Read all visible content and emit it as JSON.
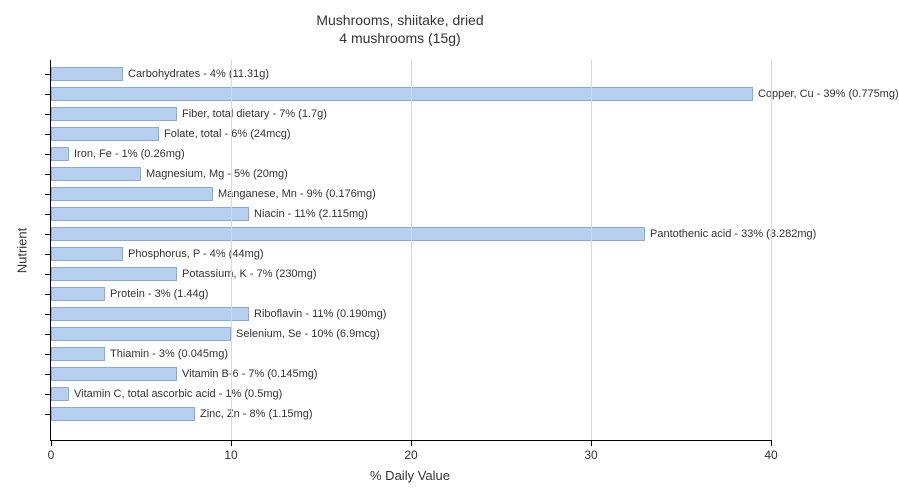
{
  "chart": {
    "type": "bar-horizontal",
    "title_line1": "Mushrooms, shiitake, dried",
    "title_line2": "4 mushrooms (15g)",
    "xlabel": "% Daily Value",
    "ylabel": "Nutrient",
    "xlim": [
      0,
      40
    ],
    "xticks": [
      0,
      10,
      20,
      30,
      40
    ],
    "bar_color": "#b8d0f0",
    "bar_border_color": "#8aa8d8",
    "grid_color": "#d9d9d9",
    "axis_color": "#000000",
    "background_color": "#ffffff",
    "text_color": "#333333",
    "label_fontsize": 11,
    "tick_fontsize": 12,
    "axis_label_fontsize": 13,
    "title_fontsize": 14,
    "nutrients": [
      {
        "name": "Carbohydrates",
        "pct": 4,
        "amount": "11.31g",
        "label": "Carbohydrates - 4% (11.31g)"
      },
      {
        "name": "Copper, Cu",
        "pct": 39,
        "amount": "0.775mg",
        "label": "Copper, Cu - 39% (0.775mg)"
      },
      {
        "name": "Fiber, total dietary",
        "pct": 7,
        "amount": "1.7g",
        "label": "Fiber, total dietary - 7% (1.7g)"
      },
      {
        "name": "Folate, total",
        "pct": 6,
        "amount": "24mcg",
        "label": "Folate, total - 6% (24mcg)"
      },
      {
        "name": "Iron, Fe",
        "pct": 1,
        "amount": "0.26mg",
        "label": "Iron, Fe - 1% (0.26mg)"
      },
      {
        "name": "Magnesium, Mg",
        "pct": 5,
        "amount": "20mg",
        "label": "Magnesium, Mg - 5% (20mg)"
      },
      {
        "name": "Manganese, Mn",
        "pct": 9,
        "amount": "0.176mg",
        "label": "Manganese, Mn - 9% (0.176mg)"
      },
      {
        "name": "Niacin",
        "pct": 11,
        "amount": "2.115mg",
        "label": "Niacin - 11% (2.115mg)"
      },
      {
        "name": "Pantothenic acid",
        "pct": 33,
        "amount": "3.282mg",
        "label": "Pantothenic acid - 33% (3.282mg)"
      },
      {
        "name": "Phosphorus, P",
        "pct": 4,
        "amount": "44mg",
        "label": "Phosphorus, P - 4% (44mg)"
      },
      {
        "name": "Potassium, K",
        "pct": 7,
        "amount": "230mg",
        "label": "Potassium, K - 7% (230mg)"
      },
      {
        "name": "Protein",
        "pct": 3,
        "amount": "1.44g",
        "label": "Protein - 3% (1.44g)"
      },
      {
        "name": "Riboflavin",
        "pct": 11,
        "amount": "0.190mg",
        "label": "Riboflavin - 11% (0.190mg)"
      },
      {
        "name": "Selenium, Se",
        "pct": 10,
        "amount": "6.9mcg",
        "label": "Selenium, Se - 10% (6.9mcg)"
      },
      {
        "name": "Thiamin",
        "pct": 3,
        "amount": "0.045mg",
        "label": "Thiamin - 3% (0.045mg)"
      },
      {
        "name": "Vitamin B-6",
        "pct": 7,
        "amount": "0.145mg",
        "label": "Vitamin B-6 - 7% (0.145mg)"
      },
      {
        "name": "Vitamin C, total ascorbic acid",
        "pct": 1,
        "amount": "0.5mg",
        "label": "Vitamin C, total ascorbic acid - 1% (0.5mg)"
      },
      {
        "name": "Zinc, Zn",
        "pct": 8,
        "amount": "1.15mg",
        "label": "Zinc, Zn - 8% (1.15mg)"
      }
    ]
  }
}
